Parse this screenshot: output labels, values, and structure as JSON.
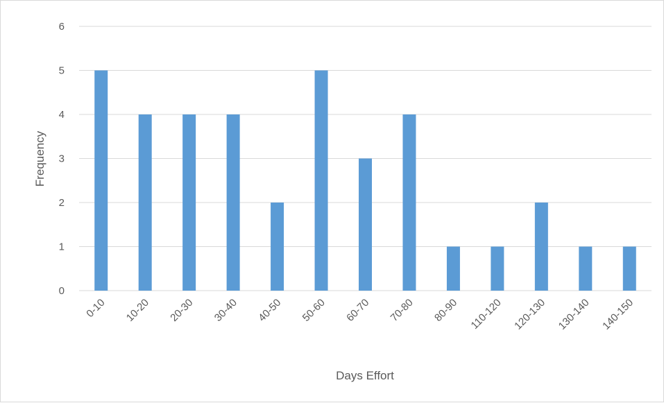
{
  "chart_data": {
    "type": "bar",
    "title": "",
    "xlabel": "Days Effort",
    "ylabel": "Frequency",
    "categories": [
      "0-10",
      "10-20",
      "20-30",
      "30-40",
      "40-50",
      "50-60",
      "60-70",
      "70-80",
      "80-90",
      "110-120",
      "120-130",
      "130-140",
      "140-150"
    ],
    "values": [
      5,
      4,
      4,
      4,
      2,
      5,
      3,
      4,
      1,
      1,
      2,
      1,
      1
    ],
    "ylim": [
      0,
      6
    ],
    "yticks": [
      "0",
      "1",
      "2",
      "3",
      "4",
      "5",
      "6"
    ],
    "grid": true,
    "legend": "none",
    "bar_color": "#5b9bd5",
    "grid_color": "#d9d9d9",
    "text_color": "#595959"
  }
}
